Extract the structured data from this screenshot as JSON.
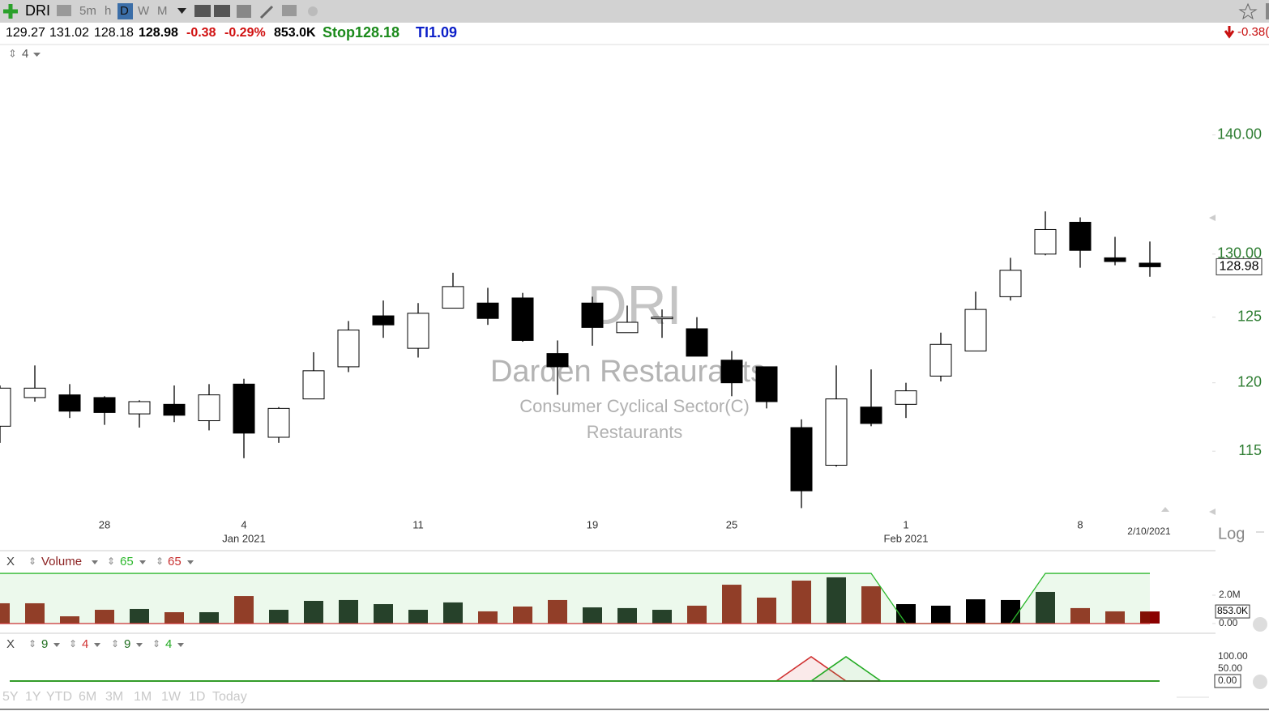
{
  "toolbar": {
    "symbol": "DRI",
    "intervals": [
      "5m",
      "h",
      "D",
      "W",
      "M"
    ]
  },
  "quote": {
    "open": "129.27",
    "high": "131.02",
    "low": "128.18",
    "last": "128.98",
    "change": "-0.38",
    "change_pct": "-0.29%",
    "volume": "853.0K",
    "stop": "Stop128.18",
    "ti": "TI1.09",
    "right_change": "-0.38("
  },
  "pane_count": "4",
  "watermark": {
    "symbol": "DRI",
    "company": "Darden Restaurants",
    "sector": "Consumer Cyclical Sector(C)",
    "industry": "Restaurants"
  },
  "scale_mode": "Log",
  "periods": [
    "5Y",
    "1Y",
    "YTD",
    "6M",
    "3M",
    "1M",
    "1W",
    "1D",
    "Today"
  ],
  "chart_data": [
    {
      "type": "candlestick",
      "log": true,
      "grid": false,
      "categories": [
        null,
        null,
        null,
        "28",
        null,
        null,
        null,
        "4",
        null,
        null,
        null,
        null,
        "11",
        null,
        null,
        null,
        null,
        "19",
        null,
        null,
        null,
        "25",
        null,
        null,
        null,
        null,
        "1",
        null,
        null,
        null,
        null,
        "8",
        null,
        "2/10/2021"
      ],
      "subcategories": [
        null,
        null,
        null,
        null,
        null,
        null,
        null,
        "Jan 2021",
        null,
        null,
        null,
        null,
        null,
        null,
        null,
        null,
        null,
        null,
        null,
        null,
        null,
        null,
        null,
        null,
        null,
        null,
        "Feb 2021",
        null,
        null,
        null,
        null,
        null,
        null,
        null
      ],
      "open": [
        116.8,
        118.9,
        119.1,
        118.9,
        117.7,
        118.4,
        117.2,
        119.9,
        116.0,
        118.8,
        121.2,
        125.1,
        122.6,
        125.7,
        126.1,
        126.5,
        122.2,
        126.1,
        123.8,
        124.9,
        124.1,
        121.7,
        121.2,
        116.7,
        114.0,
        118.2,
        118.4,
        120.5,
        122.4,
        126.6,
        130.0,
        132.6,
        129.7,
        129.27
      ],
      "high": [
        119.8,
        121.3,
        119.9,
        119.0,
        118.7,
        119.8,
        119.9,
        120.3,
        118.2,
        122.3,
        124.7,
        126.3,
        126.1,
        128.5,
        127.3,
        126.9,
        123.2,
        126.6,
        125.9,
        125.6,
        125.0,
        122.4,
        121.2,
        117.3,
        121.3,
        121.0,
        120.0,
        123.8,
        127.0,
        129.7,
        133.5,
        133.0,
        131.4,
        131.02
      ],
      "low": [
        115.6,
        118.6,
        117.4,
        116.9,
        116.7,
        117.1,
        116.5,
        114.5,
        115.6,
        118.8,
        120.8,
        123.4,
        121.9,
        125.7,
        124.4,
        123.1,
        119.1,
        122.8,
        123.8,
        123.4,
        122.0,
        119.0,
        118.1,
        111.0,
        113.9,
        116.8,
        117.4,
        120.1,
        122.4,
        126.3,
        129.9,
        128.9,
        129.1,
        128.18
      ],
      "close": [
        119.6,
        119.6,
        117.9,
        117.8,
        118.6,
        117.6,
        119.1,
        116.3,
        118.1,
        120.9,
        124.0,
        124.4,
        125.3,
        127.4,
        124.9,
        123.2,
        121.2,
        124.2,
        124.6,
        125.0,
        122.0,
        120.0,
        118.6,
        112.2,
        118.8,
        117.0,
        119.4,
        122.9,
        125.6,
        128.7,
        132.0,
        130.3,
        129.4,
        128.98
      ],
      "value_labels": [
        null,
        null,
        null,
        null,
        null,
        null,
        null,
        null,
        null,
        null,
        null,
        null,
        null,
        null,
        null,
        null,
        null,
        null,
        null,
        null,
        null,
        null,
        null,
        null,
        null,
        null,
        null,
        null,
        null,
        null,
        null,
        null,
        null,
        "128.98"
      ],
      "up_color": "#ffffff",
      "down_color": "#000000",
      "ylim": [
        110.3,
        148.1
      ],
      "yticks": [
        115,
        120,
        125,
        {
          "value": 130,
          "label": "130.00"
        },
        {
          "value": 140,
          "label": "140.00"
        }
      ]
    },
    {
      "type": "bar",
      "ylim": [
        0,
        4
      ],
      "yticks": [
        {
          "value": 2,
          "label": "2.0M"
        },
        {
          "value": 0,
          "label": "0.00"
        }
      ],
      "series": [
        {
          "name": "Volume",
          "values": [
            1.43,
            1.43,
            0.51,
            0.97,
            1.03,
            0.8,
            0.8,
            1.94,
            0.97,
            1.6,
            1.66,
            1.37,
            0.97,
            1.49,
            0.86,
            1.2,
            1.66,
            1.14,
            1.09,
            0.97,
            1.26,
            2.74,
            1.83,
            3.03,
            3.26,
            2.63,
            1.37,
            1.26,
            1.71,
            1.66,
            2.23,
            1.09,
            0.86,
            0.853
          ],
          "colors": [
            "#9b3228",
            "#9b3228",
            "#9b3228",
            "#9b3228",
            "#26352a",
            "#9b3228",
            "#26352a",
            "#9b3228",
            "#26352a",
            "#26352a",
            "#26352a",
            "#26352a",
            "#26352a",
            "#26352a",
            "#9b3228",
            "#9b3228",
            "#9b3228",
            "#26352a",
            "#26352a",
            "#26352a",
            "#9b3228",
            "#9b3228",
            "#9b3228",
            "#9b3228",
            "#26352a",
            "#9b3228",
            "#000000",
            "#000000",
            "#000000",
            "#000000",
            "#26352a",
            "#9b3228",
            "#9b3228",
            "#8b0000"
          ],
          "value_labels": [
            null,
            null,
            null,
            null,
            null,
            null,
            null,
            null,
            null,
            null,
            null,
            null,
            null,
            null,
            null,
            null,
            null,
            null,
            null,
            null,
            null,
            null,
            null,
            null,
            null,
            null,
            null,
            null,
            null,
            null,
            null,
            null,
            null,
            "853.0K"
          ]
        },
        {
          "name": "65",
          "color": "#2db82d",
          "values": [
            3.54,
            3.54,
            3.54,
            3.54,
            3.54,
            3.54,
            3.54,
            3.54,
            3.54,
            3.54,
            3.54,
            3.54,
            3.54,
            3.54,
            3.54,
            3.54,
            3.54,
            3.54,
            3.54,
            3.54,
            3.54,
            3.54,
            3.54,
            3.54,
            3.54,
            3.54,
            0,
            0,
            0,
            0,
            3.54,
            3.54,
            3.54,
            3.54
          ]
        },
        {
          "name": "65",
          "color": "#c83030",
          "values": [
            0,
            0,
            0,
            0,
            0,
            0,
            0,
            0,
            0,
            0,
            0,
            0,
            0,
            0,
            0,
            0,
            0,
            0,
            0,
            0,
            0,
            0,
            0,
            0,
            0,
            0,
            0,
            0,
            0,
            0,
            0,
            0,
            0,
            0
          ]
        }
      ]
    },
    {
      "type": "line",
      "ylim": [
        0,
        100
      ],
      "yticks": [
        {
          "value": 100,
          "label": "100.00"
        },
        {
          "value": 50,
          "label": "50.00"
        },
        {
          "value": 0,
          "label": "0.00"
        }
      ],
      "series": [
        {
          "name": "9",
          "color": "#1f6e1f",
          "values": [
            0,
            0,
            0,
            0,
            0,
            0,
            0,
            0,
            0,
            0,
            0,
            0,
            0,
            0,
            0,
            0,
            0,
            0,
            0,
            0,
            0,
            0,
            0,
            0,
            0,
            0,
            0,
            0,
            0,
            0,
            0,
            0,
            0,
            0
          ]
        },
        {
          "name": "4",
          "color": "#d03030",
          "values": [
            0,
            0,
            0,
            0,
            0,
            0,
            0,
            0,
            0,
            0,
            0,
            0,
            0,
            0,
            0,
            0,
            0,
            0,
            0,
            0,
            0,
            0,
            0,
            100,
            0,
            0,
            0,
            0,
            0,
            0,
            0,
            0,
            0,
            0
          ]
        },
        {
          "name": "9",
          "color": "#1f6e1f",
          "values": [
            0,
            0,
            0,
            0,
            0,
            0,
            0,
            0,
            0,
            0,
            0,
            0,
            0,
            0,
            0,
            0,
            0,
            0,
            0,
            0,
            0,
            0,
            0,
            0,
            0,
            0,
            0,
            0,
            0,
            0,
            0,
            0,
            0,
            0
          ]
        },
        {
          "name": "4",
          "color": "#22aa22",
          "values": [
            0,
            0,
            0,
            0,
            0,
            0,
            0,
            0,
            0,
            0,
            0,
            0,
            0,
            0,
            0,
            0,
            0,
            0,
            0,
            0,
            0,
            0,
            0,
            0,
            100,
            0,
            0,
            0,
            0,
            0,
            0,
            0,
            0,
            0
          ]
        }
      ]
    }
  ]
}
